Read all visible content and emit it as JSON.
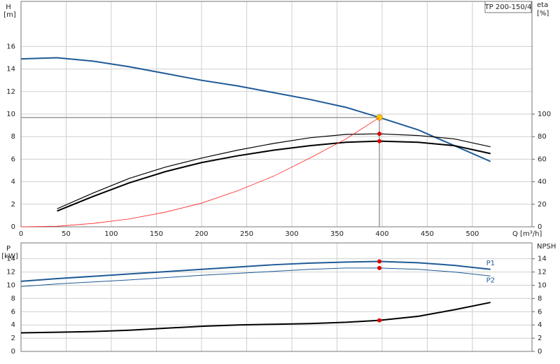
{
  "chart_data": [
    {
      "type": "line",
      "annotation": "TP 200-150/4",
      "ylabel": "H",
      "yunit": "[m]",
      "y2label": "eta",
      "y2unit": "[%]",
      "xlabel": "Q [m³/h]",
      "x": [
        0,
        40,
        80,
        120,
        160,
        200,
        240,
        280,
        320,
        360,
        397,
        440,
        480,
        520
      ],
      "xlim": [
        0,
        566
      ],
      "xticks": [
        0,
        50,
        100,
        150,
        200,
        250,
        300,
        350,
        400,
        450,
        500
      ],
      "show_xtick_labels": true,
      "ylim": [
        0,
        20
      ],
      "yticks": [
        0,
        2,
        4,
        6,
        8,
        10,
        12,
        14,
        16
      ],
      "y2lim": [
        0,
        200
      ],
      "y2ticks": [
        0,
        20,
        40,
        60,
        80,
        100
      ],
      "grid": true,
      "reference": {
        "series": 0,
        "index": 10
      },
      "series": [
        {
          "color": "#1f5a96",
          "width": 2,
          "values": [
            14.9,
            15.0,
            14.7,
            14.2,
            13.6,
            13.0,
            12.5,
            11.9,
            11.3,
            10.6,
            9.7,
            8.6,
            7.2,
            5.8
          ],
          "marker_index": 10,
          "marker_color": "#ffd700"
        },
        {
          "color": "#000000",
          "width": 1.2,
          "axis": "y2",
          "values": [
            null,
            16,
            30,
            43,
            53,
            61,
            68,
            74,
            79,
            82,
            82.5,
            81,
            78,
            71
          ],
          "marker_index": 10,
          "marker_color": "#e00000"
        },
        {
          "color": "#000000",
          "width": 2,
          "axis": "y2",
          "values": [
            null,
            14,
            27,
            39,
            49,
            57,
            63,
            68,
            72,
            75,
            76,
            75,
            72,
            65
          ],
          "marker_index": 10,
          "marker_color": "#e00000"
        },
        {
          "color": "#ff2020",
          "width": 0.8,
          "axis": "y2",
          "values": [
            0,
            0.5,
            3,
            7,
            13,
            21,
            32,
            45,
            61,
            78,
            97,
            null,
            null,
            null
          ]
        }
      ]
    },
    {
      "type": "line",
      "ylabel": "P",
      "yunit": "[kW]",
      "y2label": "NPSH",
      "x": [
        0,
        40,
        80,
        120,
        160,
        200,
        240,
        280,
        320,
        360,
        397,
        440,
        480,
        520
      ],
      "xlim": [
        0,
        566
      ],
      "xticks": [
        0,
        50,
        100,
        150,
        200,
        250,
        300,
        350,
        400,
        450,
        500
      ],
      "show_xtick_labels": false,
      "ylim": [
        0,
        16.4
      ],
      "yticks": [
        0,
        2,
        4,
        6,
        8,
        10,
        12,
        14
      ],
      "y2lim": [
        0,
        16.4
      ],
      "y2ticks": [
        0,
        2,
        4,
        6,
        8,
        10,
        12,
        14
      ],
      "grid": true,
      "series": [
        {
          "name": "P1",
          "color": "#1f5a96",
          "width": 2,
          "values": [
            10.6,
            11.0,
            11.35,
            11.7,
            12.05,
            12.4,
            12.75,
            13.1,
            13.35,
            13.5,
            13.6,
            13.4,
            13.0,
            12.4
          ],
          "marker_index": 10,
          "marker_color": "#e00000"
        },
        {
          "name": "P2",
          "color": "#1f5a96",
          "width": 1,
          "values": [
            9.8,
            10.2,
            10.5,
            10.8,
            11.15,
            11.5,
            11.8,
            12.1,
            12.4,
            12.6,
            12.6,
            12.4,
            12.0,
            11.4
          ],
          "marker_index": 10,
          "marker_color": "#e00000"
        },
        {
          "color": "#000000",
          "width": 2,
          "axis": "y2",
          "values": [
            2.8,
            2.9,
            3.0,
            3.2,
            3.5,
            3.8,
            4.0,
            4.1,
            4.2,
            4.4,
            4.7,
            5.3,
            6.3,
            7.4
          ],
          "marker_index": 10,
          "marker_color": "#e00000"
        }
      ]
    }
  ]
}
